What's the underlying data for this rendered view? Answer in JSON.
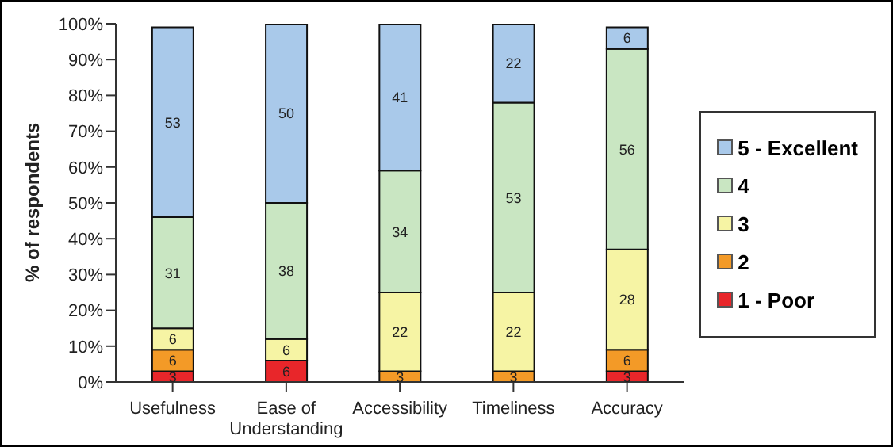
{
  "chart_data": {
    "type": "bar",
    "stacked": true,
    "ylabel": "% of respondents",
    "categories": [
      "Usefulness",
      "Ease of Understanding",
      "Accessibility",
      "Timeliness",
      "Accuracy"
    ],
    "series": [
      {
        "name": "1 - Poor",
        "color": "#e8262a",
        "values": [
          3,
          6,
          null,
          null,
          3
        ]
      },
      {
        "name": "2",
        "color": "#f39a27",
        "values": [
          6,
          null,
          3,
          3,
          6
        ]
      },
      {
        "name": "3",
        "color": "#f6f4a4",
        "values": [
          6,
          6,
          22,
          22,
          28
        ]
      },
      {
        "name": "4",
        "color": "#c9e6c2",
        "values": [
          31,
          38,
          34,
          53,
          56
        ]
      },
      {
        "name": "5 - Excellent",
        "color": "#a9c9ea",
        "values": [
          53,
          50,
          41,
          22,
          6
        ]
      }
    ],
    "ylim": [
      0,
      100
    ],
    "yticks": [
      {
        "value": 0,
        "label": "0%"
      },
      {
        "value": 10,
        "label": "10%"
      },
      {
        "value": 20,
        "label": "20%"
      },
      {
        "value": 30,
        "label": "30%"
      },
      {
        "value": 40,
        "label": "40%"
      },
      {
        "value": 50,
        "label": "50%"
      },
      {
        "value": 60,
        "label": "60%"
      },
      {
        "value": 70,
        "label": "70%"
      },
      {
        "value": 80,
        "label": "80%"
      },
      {
        "value": 90,
        "label": "90%"
      },
      {
        "value": 100,
        "label": "100%"
      }
    ],
    "grid": false,
    "legend": "right",
    "data_labels": true
  }
}
